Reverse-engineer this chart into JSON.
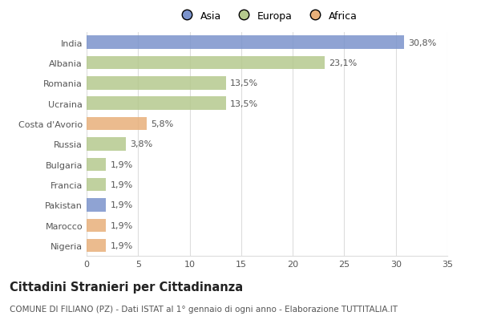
{
  "categories": [
    "India",
    "Albania",
    "Romania",
    "Ucraina",
    "Costa d'Avorio",
    "Russia",
    "Bulgaria",
    "Francia",
    "Pakistan",
    "Marocco",
    "Nigeria"
  ],
  "values": [
    30.8,
    23.1,
    13.5,
    13.5,
    5.8,
    3.8,
    1.9,
    1.9,
    1.9,
    1.9,
    1.9
  ],
  "labels": [
    "30,8%",
    "23,1%",
    "13,5%",
    "13,5%",
    "5,8%",
    "3,8%",
    "1,9%",
    "1,9%",
    "1,9%",
    "1,9%",
    "1,9%"
  ],
  "continent": [
    "Asia",
    "Europa",
    "Europa",
    "Europa",
    "Africa",
    "Europa",
    "Europa",
    "Europa",
    "Asia",
    "Africa",
    "Africa"
  ],
  "colors": {
    "Asia": "#7b93cc",
    "Europa": "#b5c98e",
    "Africa": "#e8b07a"
  },
  "xlim": [
    0,
    35
  ],
  "xticks": [
    0,
    5,
    10,
    15,
    20,
    25,
    30,
    35
  ],
  "title": "Cittadini Stranieri per Cittadinanza",
  "subtitle": "COMUNE DI FILIANO (PZ) - Dati ISTAT al 1° gennaio di ogni anno - Elaborazione TUTTITALIA.IT",
  "background_color": "#ffffff",
  "grid_color": "#dddddd",
  "bar_height": 0.65,
  "label_fontsize": 8,
  "tick_fontsize": 8,
  "title_fontsize": 10.5,
  "subtitle_fontsize": 7.5,
  "legend_order": [
    "Asia",
    "Europa",
    "Africa"
  ]
}
